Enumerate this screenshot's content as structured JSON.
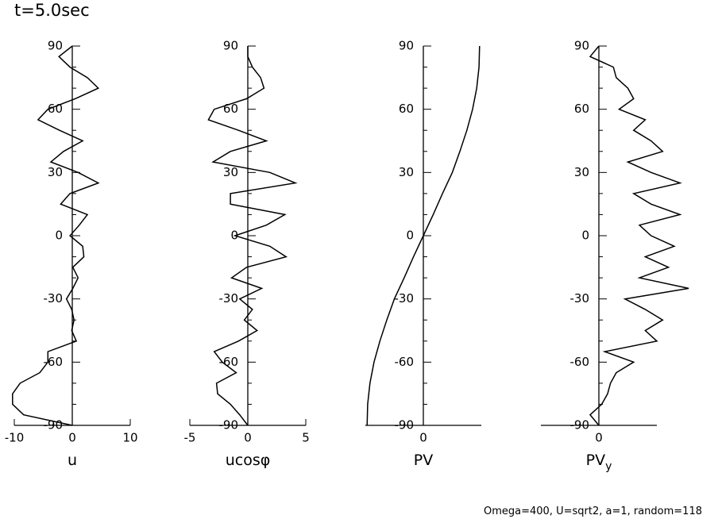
{
  "title": "t=5.0sec",
  "footer": "Omega=400, U=sqrt2, a=1, random=118",
  "chart_data": [
    {
      "type": "line",
      "xlabel": "u",
      "xlim": [
        -10,
        10
      ],
      "xticks": [
        -10,
        0,
        10
      ],
      "ylim": [
        -90,
        90
      ],
      "yticks": [
        -90,
        -60,
        -30,
        0,
        30,
        60,
        90
      ],
      "yminorticks": [
        -80,
        -70,
        -50,
        -40,
        -20,
        -10,
        10,
        20,
        40,
        50,
        70,
        80
      ],
      "color": "#000000",
      "y": [
        90,
        85,
        80,
        75,
        70,
        65,
        60,
        55,
        50,
        45,
        40,
        35,
        30,
        25,
        20,
        15,
        10,
        5,
        0,
        -5,
        -10,
        -15,
        -20,
        -25,
        -30,
        -35,
        -40,
        -45,
        -50,
        -55,
        -60,
        -65,
        -70,
        -75,
        -80,
        -85,
        -90
      ],
      "values": [
        0,
        -2.3,
        -0.4,
        2.6,
        4.5,
        0.5,
        -4.2,
        -5.9,
        -2.2,
        1.8,
        -1.5,
        -3.7,
        1,
        4.5,
        -0.4,
        -2,
        2.6,
        1.2,
        -0.4,
        1.8,
        2,
        0.1,
        1,
        0.1,
        -1,
        -0.1,
        0.3,
        -0.1,
        0.7,
        -4.2,
        -4.2,
        -5.6,
        -9,
        -10.3,
        -10.3,
        -8.4,
        0
      ]
    },
    {
      "type": "line",
      "xlabel": "ucosφ",
      "xlim": [
        -5,
        5
      ],
      "xticks": [
        -5,
        0,
        5
      ],
      "ylim": [
        -90,
        90
      ],
      "yticks": [
        -90,
        -60,
        -30,
        0,
        30,
        60,
        90
      ],
      "yminorticks": [
        -80,
        -70,
        -50,
        -40,
        -20,
        -10,
        10,
        20,
        40,
        50,
        70,
        80
      ],
      "color": "#000000",
      "y": [
        90,
        85,
        80,
        75,
        70,
        65,
        60,
        55,
        50,
        45,
        40,
        35,
        30,
        25,
        20,
        15,
        10,
        5,
        0,
        -5,
        -10,
        -15,
        -20,
        -25,
        -30,
        -35,
        -40,
        -45,
        -50,
        -55,
        -60,
        -65,
        -70,
        -75,
        -80,
        -85,
        -90
      ],
      "values": [
        0,
        0,
        0.4,
        1.1,
        1.4,
        -0.1,
        -2.9,
        -3.4,
        -0.8,
        1.6,
        -1.5,
        -3,
        1.9,
        4.1,
        -1.5,
        -1.5,
        3.2,
        1.6,
        -1.1,
        1.9,
        3.3,
        -0.1,
        -1.4,
        1.2,
        -0.7,
        0.4,
        -0.3,
        0.8,
        -0.8,
        -2.9,
        -2.2,
        -1,
        -2.7,
        -2.6,
        -1.5,
        -0.7,
        0
      ]
    },
    {
      "type": "line",
      "xlabel": "PV",
      "xlim": [
        -1,
        1
      ],
      "xticks": [
        0
      ],
      "ylim": [
        -90,
        90
      ],
      "yticks": [
        -90,
        -60,
        -30,
        0,
        30,
        60,
        90
      ],
      "yminorticks": [
        -80,
        -70,
        -50,
        -40,
        -20,
        -10,
        10,
        20,
        40,
        50,
        70,
        80
      ],
      "color": "#000000",
      "y": [
        90,
        80,
        70,
        60,
        50,
        40,
        30,
        20,
        10,
        0,
        -10,
        -20,
        -30,
        -40,
        -50,
        -60,
        -70,
        -80,
        -90
      ],
      "values": [
        0.97,
        0.96,
        0.92,
        0.85,
        0.75,
        0.63,
        0.5,
        0.33,
        0.17,
        0,
        -0.17,
        -0.33,
        -0.5,
        -0.63,
        -0.75,
        -0.85,
        -0.92,
        -0.96,
        -0.97
      ]
    },
    {
      "type": "line",
      "xlabel": "PV",
      "xlabel_subscript": "y",
      "xlim": [
        -1,
        1
      ],
      "xticks": [
        0
      ],
      "ylim": [
        -90,
        90
      ],
      "yticks": [
        -90,
        -60,
        -30,
        0,
        30,
        60,
        90
      ],
      "yminorticks": [
        -80,
        -70,
        -50,
        -40,
        -20,
        -10,
        10,
        20,
        40,
        50,
        70,
        80
      ],
      "color": "#000000",
      "y": [
        90,
        85,
        80,
        75,
        70,
        65,
        60,
        55,
        50,
        45,
        40,
        35,
        30,
        25,
        20,
        15,
        10,
        5,
        0,
        -5,
        -10,
        -15,
        -20,
        -25,
        -30,
        -35,
        -40,
        -45,
        -50,
        -55,
        -60,
        -65,
        -70,
        -75,
        -80,
        -85,
        -90
      ],
      "values": [
        0,
        -0.15,
        0.25,
        0.3,
        0.5,
        0.6,
        0.35,
        0.8,
        0.6,
        0.9,
        1.1,
        0.5,
        0.9,
        1.4,
        0.6,
        0.9,
        1.4,
        0.7,
        0.9,
        1.3,
        0.8,
        1.2,
        0.7,
        1.55,
        0.45,
        0.8,
        1.1,
        0.8,
        1,
        0.1,
        0.6,
        0.3,
        0.2,
        0.15,
        0.05,
        -0.15,
        0
      ]
    }
  ]
}
